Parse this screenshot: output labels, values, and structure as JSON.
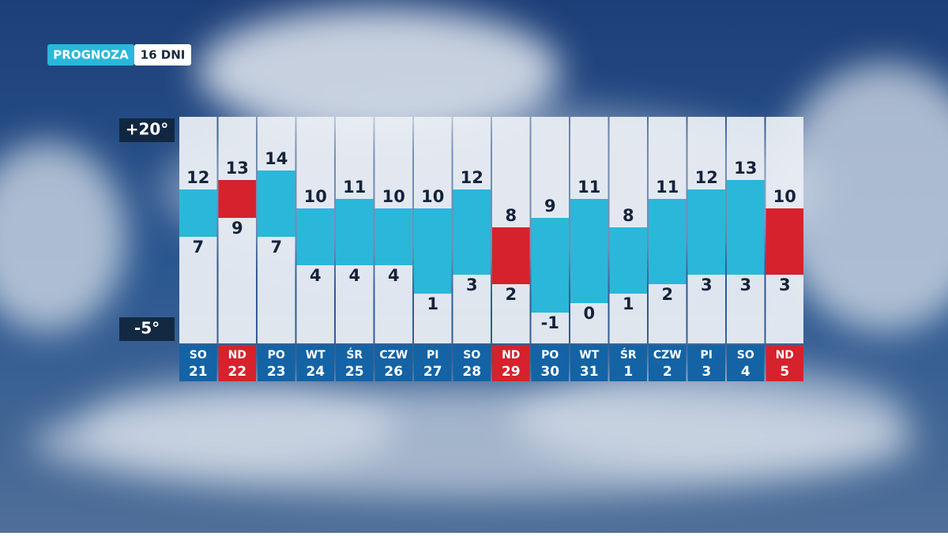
{
  "header": {
    "label": "PROGNOZA",
    "span": "16 DNI"
  },
  "chart_data": {
    "type": "range-bar",
    "days": [
      "SO",
      "ND",
      "PO",
      "WT",
      "ŚR",
      "CZW",
      "PI",
      "SO",
      "ND",
      "PO",
      "WT",
      "ŚR",
      "CZW",
      "PI",
      "SO",
      "ND"
    ],
    "dates": [
      "21",
      "22",
      "23",
      "24",
      "25",
      "26",
      "27",
      "28",
      "29",
      "30",
      "31",
      "1",
      "2",
      "3",
      "4",
      "5"
    ],
    "high": [
      12,
      13,
      14,
      10,
      11,
      10,
      10,
      12,
      8,
      9,
      11,
      8,
      11,
      12,
      13,
      10
    ],
    "low": [
      7,
      9,
      7,
      4,
      4,
      4,
      1,
      3,
      2,
      -1,
      0,
      1,
      2,
      3,
      3,
      3
    ],
    "highlight": [
      false,
      true,
      false,
      false,
      false,
      false,
      false,
      false,
      true,
      false,
      false,
      false,
      false,
      false,
      false,
      true
    ],
    "color": "#2bb7d9",
    "highlight_color": "#d5222d",
    "label_color": "#1463a5",
    "ylim": [
      -5,
      20
    ],
    "yticks": [
      {
        "value": 20,
        "label": "+20°"
      },
      {
        "value": -5,
        "label": "-5°"
      }
    ]
  }
}
